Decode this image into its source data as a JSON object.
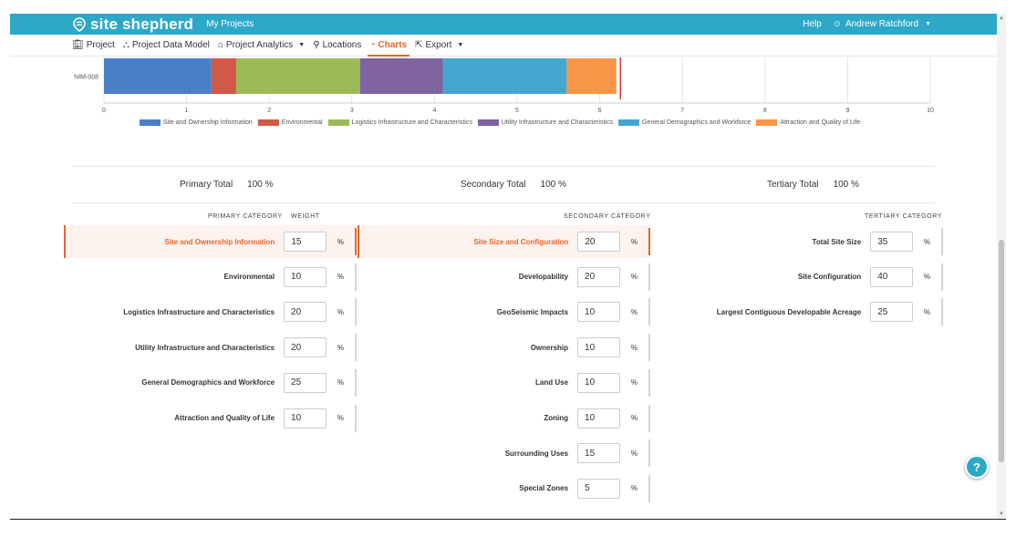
{
  "header": {
    "brand": "site shepherd",
    "my_projects": "My Projects",
    "help": "Help",
    "user": "Andrew Ratchford"
  },
  "nav": {
    "project": "Project",
    "data_model": "Project Data Model",
    "analytics": "Project Analytics",
    "locations": "Locations",
    "charts": "Charts",
    "export": "Export"
  },
  "chart_data": {
    "type": "bar",
    "orientation": "horizontal-stacked",
    "categories": [
      "NIM-008"
    ],
    "series": [
      {
        "name": "Site and Ownership Information",
        "values": [
          1.3
        ],
        "color": "#4a7fc7"
      },
      {
        "name": "Environmental",
        "values": [
          0.3
        ],
        "color": "#d05a47"
      },
      {
        "name": "Logistics Infrastructure and Characteristics",
        "values": [
          1.5
        ],
        "color": "#9bbb59"
      },
      {
        "name": "Utility Infrastructure and Characteristics",
        "values": [
          1.0
        ],
        "color": "#8064a2"
      },
      {
        "name": "General Demographics and Workforce",
        "values": [
          1.5
        ],
        "color": "#45a6d0"
      },
      {
        "name": "Attraction and Quality of Life",
        "values": [
          0.6
        ],
        "color": "#f79646"
      }
    ],
    "reference_line": 6.25,
    "xlim": [
      0,
      10
    ],
    "xticks": [
      "0",
      "1",
      "2",
      "3",
      "4",
      "5",
      "6",
      "7",
      "8",
      "9",
      "10"
    ],
    "legend": "bottom"
  },
  "totals": {
    "primary_label": "Primary Total",
    "primary_value": "100 %",
    "secondary_label": "Secondary Total",
    "secondary_value": "100 %",
    "tertiary_label": "Tertiary Total",
    "tertiary_value": "100 %"
  },
  "headers": {
    "primary": "PRIMARY CATEGORY",
    "weight": "WEIGHT",
    "secondary": "SECONDARY CATEGORY",
    "tertiary": "TERTIARY CATEGORY"
  },
  "primary": [
    {
      "label": "Site and Ownership Information",
      "value": "15",
      "pct": "%"
    },
    {
      "label": "Environmental",
      "value": "10",
      "pct": "%"
    },
    {
      "label": "Logistics Infrastructure and Characteristics",
      "value": "20",
      "pct": "%"
    },
    {
      "label": "Utility Infrastructure and Characteristics",
      "value": "20",
      "pct": "%"
    },
    {
      "label": "General Demographics and Workforce",
      "value": "25",
      "pct": "%"
    },
    {
      "label": "Attraction and Quality of Life",
      "value": "10",
      "pct": "%"
    }
  ],
  "secondary": [
    {
      "label": "Site Size and Configuration",
      "value": "20",
      "pct": "%"
    },
    {
      "label": "Developability",
      "value": "20",
      "pct": "%"
    },
    {
      "label": "GeoSeismic Impacts",
      "value": "10",
      "pct": "%"
    },
    {
      "label": "Ownership",
      "value": "10",
      "pct": "%"
    },
    {
      "label": "Land Use",
      "value": "10",
      "pct": "%"
    },
    {
      "label": "Zoning",
      "value": "10",
      "pct": "%"
    },
    {
      "label": "Surrounding Uses",
      "value": "15",
      "pct": "%"
    },
    {
      "label": "Special Zones",
      "value": "5",
      "pct": "%"
    }
  ],
  "tertiary": [
    {
      "label": "Total Site Size",
      "value": "35",
      "pct": "%"
    },
    {
      "label": "Site Configuration",
      "value": "40",
      "pct": "%"
    },
    {
      "label": "Largest Contiguous Developable Acreage",
      "value": "25",
      "pct": "%"
    }
  ],
  "help_fab": "?"
}
